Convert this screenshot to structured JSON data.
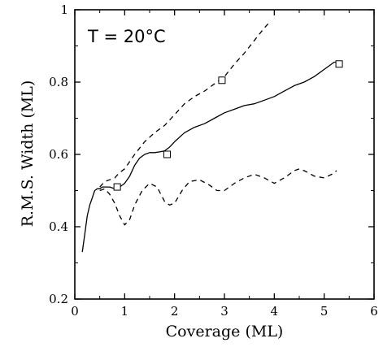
{
  "chart_data": {
    "type": "line",
    "xlabel": "Coverage (ML)",
    "ylabel": "R.M.S. Width (ML)",
    "annotation": "T = 20°C",
    "xlim": [
      0,
      6
    ],
    "ylim": [
      0.2,
      1.0
    ],
    "xticks": [
      0,
      1,
      2,
      3,
      4,
      5,
      6
    ],
    "yticks": [
      0.2,
      0.4,
      0.6,
      0.8,
      1.0
    ],
    "xtick_labels": [
      "0",
      "1",
      "2",
      "3",
      "4",
      "5",
      "6"
    ],
    "ytick_labels": [
      "0.2",
      "0.4",
      "0.6",
      "0.8",
      "1"
    ],
    "grid": false,
    "series": [
      {
        "style": "solid",
        "x": [
          0.15,
          0.2,
          0.25,
          0.3,
          0.35,
          0.4,
          0.45,
          0.5,
          0.55,
          0.6,
          0.7,
          0.8,
          0.9,
          1.0,
          1.1,
          1.2,
          1.3,
          1.4,
          1.5,
          1.6,
          1.7,
          1.8,
          1.9,
          2.0,
          2.2,
          2.4,
          2.6,
          2.8,
          3.0,
          3.2,
          3.4,
          3.6,
          3.8,
          4.0,
          4.2,
          4.4,
          4.6,
          4.8,
          5.0,
          5.1,
          5.2,
          5.3
        ],
        "y": [
          0.33,
          0.38,
          0.43,
          0.46,
          0.48,
          0.5,
          0.505,
          0.505,
          0.51,
          0.51,
          0.51,
          0.505,
          0.51,
          0.52,
          0.54,
          0.57,
          0.59,
          0.6,
          0.605,
          0.605,
          0.607,
          0.61,
          0.62,
          0.635,
          0.66,
          0.675,
          0.685,
          0.7,
          0.715,
          0.725,
          0.735,
          0.74,
          0.75,
          0.76,
          0.775,
          0.79,
          0.8,
          0.815,
          0.835,
          0.845,
          0.855,
          0.855
        ]
      },
      {
        "style": "dashed",
        "x": [
          0.5,
          0.6,
          0.7,
          0.8,
          0.9,
          1.0,
          1.2,
          1.4,
          1.6,
          1.8,
          2.0,
          2.2,
          2.4,
          2.6,
          2.8,
          3.0,
          3.2,
          3.4,
          3.6,
          3.8,
          3.9
        ],
        "y": [
          0.51,
          0.525,
          0.53,
          0.535,
          0.55,
          0.56,
          0.6,
          0.635,
          0.66,
          0.68,
          0.71,
          0.74,
          0.76,
          0.775,
          0.795,
          0.815,
          0.85,
          0.88,
          0.915,
          0.95,
          0.965
        ]
      },
      {
        "style": "dashed",
        "x": [
          0.5,
          0.6,
          0.7,
          0.8,
          0.9,
          1.0,
          1.1,
          1.2,
          1.35,
          1.5,
          1.65,
          1.8,
          1.9,
          2.0,
          2.15,
          2.3,
          2.5,
          2.7,
          2.85,
          3.0,
          3.2,
          3.4,
          3.6,
          3.8,
          4.0,
          4.2,
          4.4,
          4.5,
          4.6,
          4.8,
          5.0,
          5.15,
          5.25
        ],
        "y": [
          0.5,
          0.505,
          0.49,
          0.465,
          0.43,
          0.405,
          0.42,
          0.46,
          0.5,
          0.52,
          0.51,
          0.47,
          0.46,
          0.465,
          0.5,
          0.525,
          0.53,
          0.515,
          0.5,
          0.5,
          0.52,
          0.535,
          0.545,
          0.535,
          0.52,
          0.535,
          0.555,
          0.56,
          0.555,
          0.54,
          0.535,
          0.545,
          0.555
        ]
      },
      {
        "style": "markers",
        "marker": "open-square",
        "x": [
          0.85,
          1.85,
          2.95,
          5.3
        ],
        "y": [
          0.51,
          0.6,
          0.805,
          0.85
        ]
      }
    ]
  }
}
